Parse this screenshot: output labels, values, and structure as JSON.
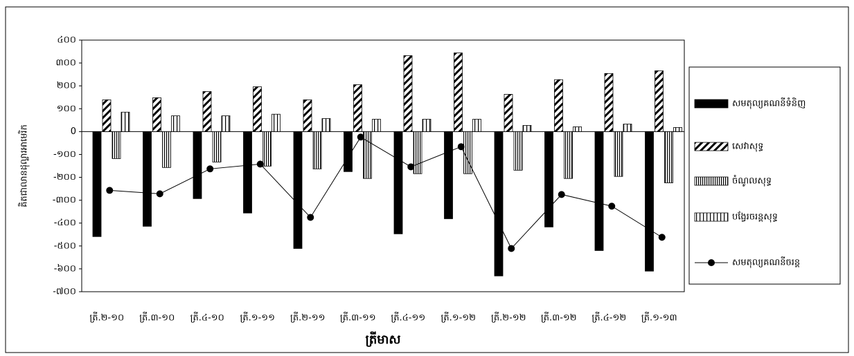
{
  "chart_data": {
    "type": "bar",
    "y_label": "គិតជាលានដុល្លារអាមេរិក",
    "x_label": "ត្រីមាស",
    "categories": [
      "ត្រី.២-១០",
      "ត្រី.៣-១០",
      "ត្រី.៤-១០",
      "ត្រី.១-១១",
      "ត្រី.២-១១",
      "ត្រី.៣-១១",
      "ត្រី.៤-១១",
      "ត្រី.១-១២",
      "ត្រី.២-១២",
      "ត្រី.៣-១២",
      "ត្រី.៤-១២",
      "ត្រី.១-១៣"
    ],
    "series": [
      {
        "name": "សមតុល្យគណនីទំនិញ",
        "color": "#000000",
        "pattern": "solid",
        "type": "bar",
        "values": [
          -459,
          -414,
          -293,
          -356,
          -511,
          -175,
          -447,
          -381,
          -631,
          -417,
          -520,
          -610
        ]
      },
      {
        "name": "សេវាសុទ្ធ",
        "color": "#000000",
        "pattern": "diagonal",
        "type": "bar",
        "values": [
          139,
          148,
          175,
          196,
          139,
          205,
          332,
          344,
          163,
          227,
          254,
          266
        ]
      },
      {
        "name": "ចំណូលសុទ្ធ",
        "color": "#000000",
        "pattern": "vertical",
        "type": "bar",
        "values": [
          -118,
          -157,
          -133,
          -151,
          -163,
          -205,
          -184,
          -184,
          -169,
          -205,
          -196,
          -224
        ]
      },
      {
        "name": "បង្វែរចរន្តសុទ្ធ",
        "color": "#000000",
        "pattern": "vertical-wide",
        "type": "bar",
        "values": [
          85,
          69,
          69,
          76,
          57,
          54,
          54,
          54,
          27,
          21,
          33,
          18
        ]
      },
      {
        "name": "សមតុល្យគណនីចរន្ត",
        "color": "#000000",
        "pattern": "line",
        "type": "line",
        "values": [
          -257,
          -272,
          -163,
          -142,
          -375,
          -24,
          -154,
          -66,
          -511,
          -275,
          -326,
          -462
        ]
      }
    ],
    "ylim": [
      -700,
      400
    ],
    "yticks": [
      {
        "value": -700,
        "label": "-៧០០"
      },
      {
        "value": -600,
        "label": "-៦០០"
      },
      {
        "value": -500,
        "label": "-៥០០"
      },
      {
        "value": -400,
        "label": "-៤០០"
      },
      {
        "value": -300,
        "label": "-៣០០"
      },
      {
        "value": -200,
        "label": "-២០០"
      },
      {
        "value": -100,
        "label": "-១០០"
      },
      0,
      {
        "value": 100,
        "label": "១០០"
      },
      {
        "value": 200,
        "label": "២០០"
      },
      {
        "value": 300,
        "label": "៣០០"
      },
      {
        "value": 400,
        "label": "៤០០"
      }
    ],
    "grid": false,
    "legend": "right"
  }
}
